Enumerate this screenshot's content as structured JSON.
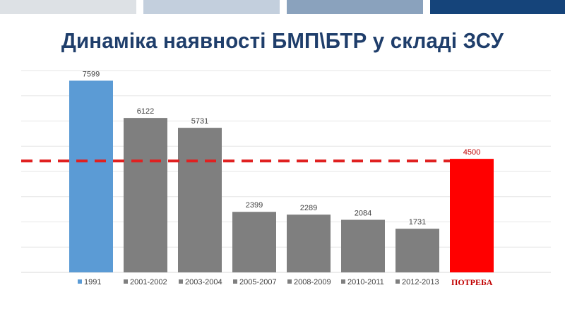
{
  "header": {
    "bands": [
      "#dde1e5",
      "#c3cfdd",
      "#8aa2bd",
      "#15447a"
    ]
  },
  "chart_data": {
    "type": "bar",
    "title": "Динаміка наявності БМП\\БТР у складі ЗСУ",
    "categories": [
      "1991",
      "2001-2002",
      "2003-2004",
      "2005-2007",
      "2008-2009",
      "2010-2011",
      "2012-2013",
      "ПОТРЕБА"
    ],
    "values": [
      7599,
      6122,
      5731,
      2399,
      2289,
      2084,
      1731,
      4500
    ],
    "colors": [
      "#5b9bd5",
      "#7f7f7f",
      "#7f7f7f",
      "#7f7f7f",
      "#7f7f7f",
      "#7f7f7f",
      "#7f7f7f",
      "#ff0000"
    ],
    "data_label_colors": [
      "#404040",
      "#404040",
      "#404040",
      "#404040",
      "#404040",
      "#404040",
      "#404040",
      "#c00000"
    ],
    "ylim": [
      0,
      8000
    ],
    "grid": true,
    "reference_line": {
      "value": 4500,
      "color": "#e02020",
      "style": "dashed"
    },
    "legend_position": "bottom",
    "xlabel": "",
    "ylabel": ""
  }
}
